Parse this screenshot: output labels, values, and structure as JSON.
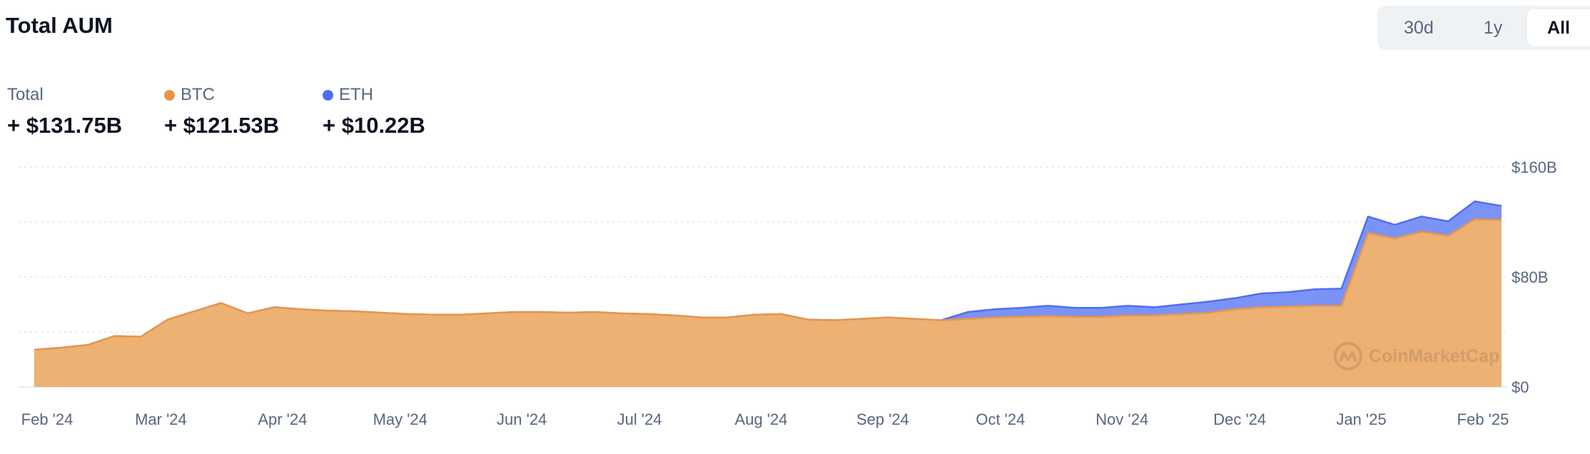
{
  "header": {
    "title": "Total AUM"
  },
  "range_selector": {
    "options": [
      "30d",
      "1y",
      "All"
    ],
    "selected": "All"
  },
  "legend": [
    {
      "label": "Total",
      "value": "+ $131.75B",
      "color": ""
    },
    {
      "label": "BTC",
      "value": "+ $121.53B",
      "color": "#e8954a"
    },
    {
      "label": "ETH",
      "value": "+ $10.22B",
      "color": "#4f6ef2"
    }
  ],
  "watermark": "CoinMarketCap",
  "chart_data": {
    "type": "area",
    "stacked": true,
    "title": "Total AUM",
    "x_tick_labels": [
      "Feb '24",
      "Mar '24",
      "Apr '24",
      "May '24",
      "Jun '24",
      "Jul '24",
      "Aug '24",
      "Sep '24",
      "Oct '24",
      "Nov '24",
      "Dec '24",
      "Jan '25",
      "Feb '25"
    ],
    "y_tick_labels": [
      "$0",
      "$80B",
      "$160B"
    ],
    "y_ticks": [
      0,
      40,
      80,
      120,
      160
    ],
    "ylim": [
      0,
      160
    ],
    "y_unit": "B USD",
    "grid": true,
    "x": [
      "2024-01-11",
      "2024-01-18",
      "2024-01-25",
      "2024-02-01",
      "2024-02-08",
      "2024-02-15",
      "2024-02-22",
      "2024-02-29",
      "2024-03-07",
      "2024-03-14",
      "2024-03-21",
      "2024-03-28",
      "2024-04-04",
      "2024-04-11",
      "2024-04-18",
      "2024-04-25",
      "2024-05-02",
      "2024-05-09",
      "2024-05-16",
      "2024-05-23",
      "2024-05-30",
      "2024-06-06",
      "2024-06-13",
      "2024-06-20",
      "2024-06-27",
      "2024-07-04",
      "2024-07-11",
      "2024-07-18",
      "2024-07-25",
      "2024-08-01",
      "2024-08-08",
      "2024-08-15",
      "2024-08-22",
      "2024-08-29",
      "2024-09-05",
      "2024-09-12",
      "2024-09-19",
      "2024-09-26",
      "2024-10-03",
      "2024-10-10",
      "2024-10-17",
      "2024-10-24",
      "2024-10-31",
      "2024-11-07",
      "2024-11-14",
      "2024-11-21",
      "2024-11-28",
      "2024-12-05",
      "2024-12-12",
      "2024-12-19",
      "2024-12-26",
      "2025-01-02",
      "2025-01-09",
      "2025-01-16",
      "2025-01-23",
      "2025-01-30"
    ],
    "series": [
      {
        "name": "BTC",
        "color": "#ecb173",
        "line_color": "#e8954a",
        "values": [
          27,
          28.5,
          30.5,
          37,
          36.5,
          49,
          55,
          61,
          53.5,
          58,
          56.5,
          55.5,
          55,
          54,
          53,
          52.5,
          52.5,
          53.5,
          54.5,
          54.5,
          54,
          54.5,
          53.5,
          53,
          52,
          50.5,
          50.5,
          52.5,
          53,
          49,
          48.5,
          49.5,
          50.5,
          49.5,
          48.5,
          49.5,
          50.5,
          51,
          51.5,
          51,
          51,
          52,
          52,
          53,
          54,
          56.5,
          58,
          58.5,
          59,
          59,
          112,
          108,
          113,
          110,
          122,
          121.5
        ]
      },
      {
        "name": "ETH",
        "color": "#7b93f5",
        "line_color": "#4f6ef2",
        "values": [
          0,
          0,
          0,
          0,
          0,
          0,
          0,
          0,
          0,
          0,
          0,
          0,
          0,
          0,
          0,
          0,
          0,
          0,
          0,
          0,
          0,
          0,
          0,
          0,
          0,
          0,
          0,
          0,
          0,
          0,
          0,
          0,
          0,
          0,
          0,
          5,
          6,
          6.5,
          7.5,
          6.5,
          6.5,
          7,
          6,
          7,
          8,
          8,
          10,
          10.5,
          12,
          12.5,
          12,
          10,
          11,
          10.5,
          13,
          10.2
        ]
      }
    ]
  }
}
